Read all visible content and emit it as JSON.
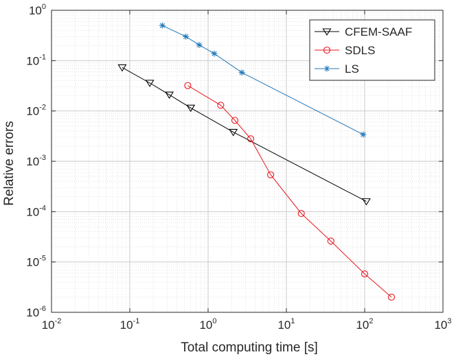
{
  "chart_data": {
    "type": "line",
    "xscale": "log",
    "yscale": "log",
    "xlabel": "Total computing time [s]",
    "ylabel": "Relative errors",
    "xlim": [
      0.01,
      1000
    ],
    "ylim": [
      1e-06,
      1
    ],
    "grid": true,
    "legend_position": "top-right",
    "x_ticks": [
      {
        "base": "10",
        "exp": "-2",
        "value": 0.01
      },
      {
        "base": "10",
        "exp": "-1",
        "value": 0.1
      },
      {
        "base": "10",
        "exp": "0",
        "value": 1
      },
      {
        "base": "10",
        "exp": "1",
        "value": 10
      },
      {
        "base": "10",
        "exp": "2",
        "value": 100
      },
      {
        "base": "10",
        "exp": "3",
        "value": 1000
      }
    ],
    "y_ticks": [
      {
        "base": "10",
        "exp": "-6",
        "value": 1e-06
      },
      {
        "base": "10",
        "exp": "-5",
        "value": 1e-05
      },
      {
        "base": "10",
        "exp": "-4",
        "value": 0.0001
      },
      {
        "base": "10",
        "exp": "-3",
        "value": 0.001
      },
      {
        "base": "10",
        "exp": "-2",
        "value": 0.01
      },
      {
        "base": "10",
        "exp": "-1",
        "value": 0.1
      },
      {
        "base": "10",
        "exp": "0",
        "value": 1
      }
    ],
    "series": [
      {
        "name": "CFEM-SAAF",
        "color": "#000000",
        "marker": "triangle-down",
        "x": [
          0.08,
          0.18,
          0.32,
          0.6,
          2.1,
          105
        ],
        "y": [
          0.073,
          0.036,
          0.021,
          0.0115,
          0.0038,
          0.00016
        ]
      },
      {
        "name": "SDLS",
        "color": "#e8161d",
        "marker": "circle",
        "x": [
          0.55,
          1.45,
          2.2,
          3.5,
          6.3,
          15.5,
          37,
          100,
          220
        ],
        "y": [
          0.032,
          0.013,
          0.0065,
          0.0028,
          0.00054,
          9.2e-05,
          2.6e-05,
          5.8e-06,
          2e-06
        ]
      },
      {
        "name": "LS",
        "color": "#2078b8",
        "marker": "asterisk",
        "x": [
          0.26,
          0.52,
          0.77,
          1.2,
          2.7,
          96
        ],
        "y": [
          0.5,
          0.3,
          0.205,
          0.138,
          0.058,
          0.0034
        ]
      }
    ]
  }
}
